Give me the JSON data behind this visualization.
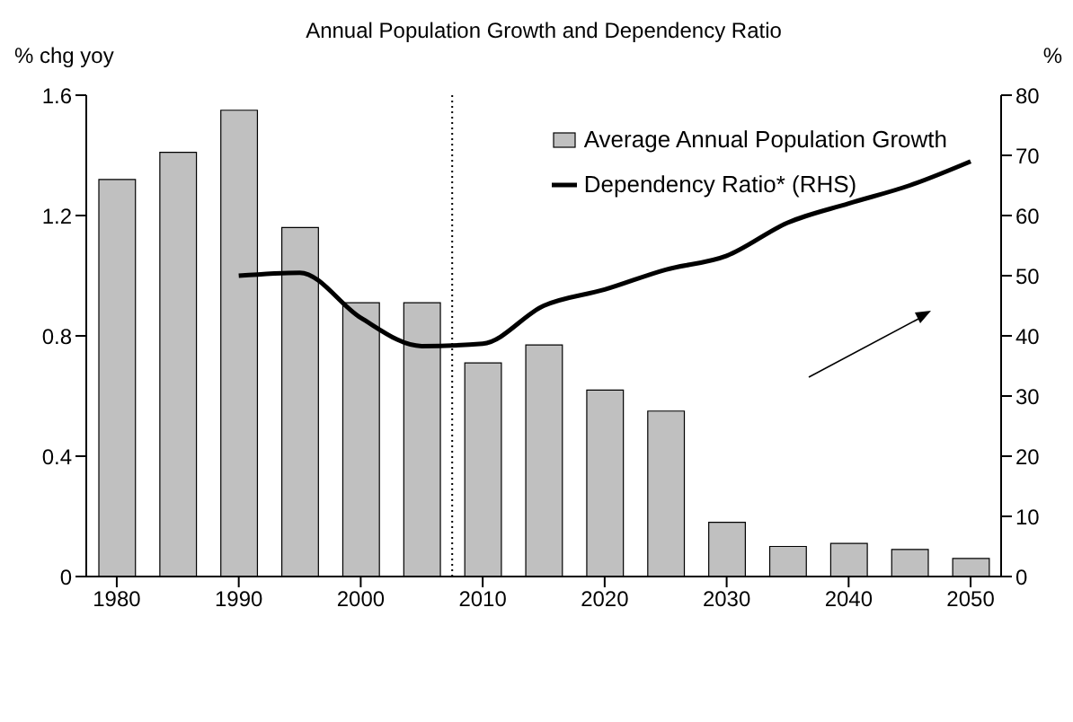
{
  "chart_data": {
    "type": "bar",
    "title": "Annual Population Growth and Dependency Ratio",
    "ylabel": "% chg yoy",
    "y2label": "%",
    "xlim": [
      1977.5,
      2052.5
    ],
    "xticks": [
      1980,
      1990,
      2000,
      2010,
      2020,
      2030,
      2040,
      2050
    ],
    "ylim": [
      0,
      1.6
    ],
    "yticks": [
      0,
      0.4,
      0.8,
      1.2,
      1.6
    ],
    "y2lim": [
      0,
      80
    ],
    "y2ticks": [
      0,
      10,
      20,
      30,
      40,
      50,
      60,
      70,
      80
    ],
    "legend": "top right",
    "ref_lines": [
      {
        "axis": "x",
        "value": 2007.5,
        "color": "#000000",
        "line_style": "dotted"
      }
    ],
    "series": [
      {
        "name": "Average Annual Population Growth",
        "color": "#c0c0c0",
        "x": [
          1980,
          1985,
          1990,
          1995,
          2000,
          2005,
          2010,
          2015,
          2020,
          2025,
          2030,
          2035,
          2040,
          2045,
          2050
        ],
        "values": [
          1.32,
          1.41,
          1.55,
          1.16,
          0.91,
          0.91,
          0.71,
          0.77,
          0.62,
          0.55,
          0.18,
          0.1,
          0.11,
          0.09,
          0.06
        ]
      },
      {
        "name": "Dependency Ratio*  (RHS)",
        "type": "line",
        "axis": "y2",
        "color": "#000000",
        "marker": "none",
        "line_style": "solid",
        "x": [
          1990,
          1995,
          2000,
          2005,
          2010,
          2015,
          2020,
          2025,
          2030,
          2035,
          2040,
          2045,
          2050
        ],
        "values": [
          50,
          50.5,
          43,
          38.3,
          38.7,
          45,
          47.7,
          51,
          53.3,
          58.8,
          62,
          65,
          69
        ]
      }
    ]
  }
}
